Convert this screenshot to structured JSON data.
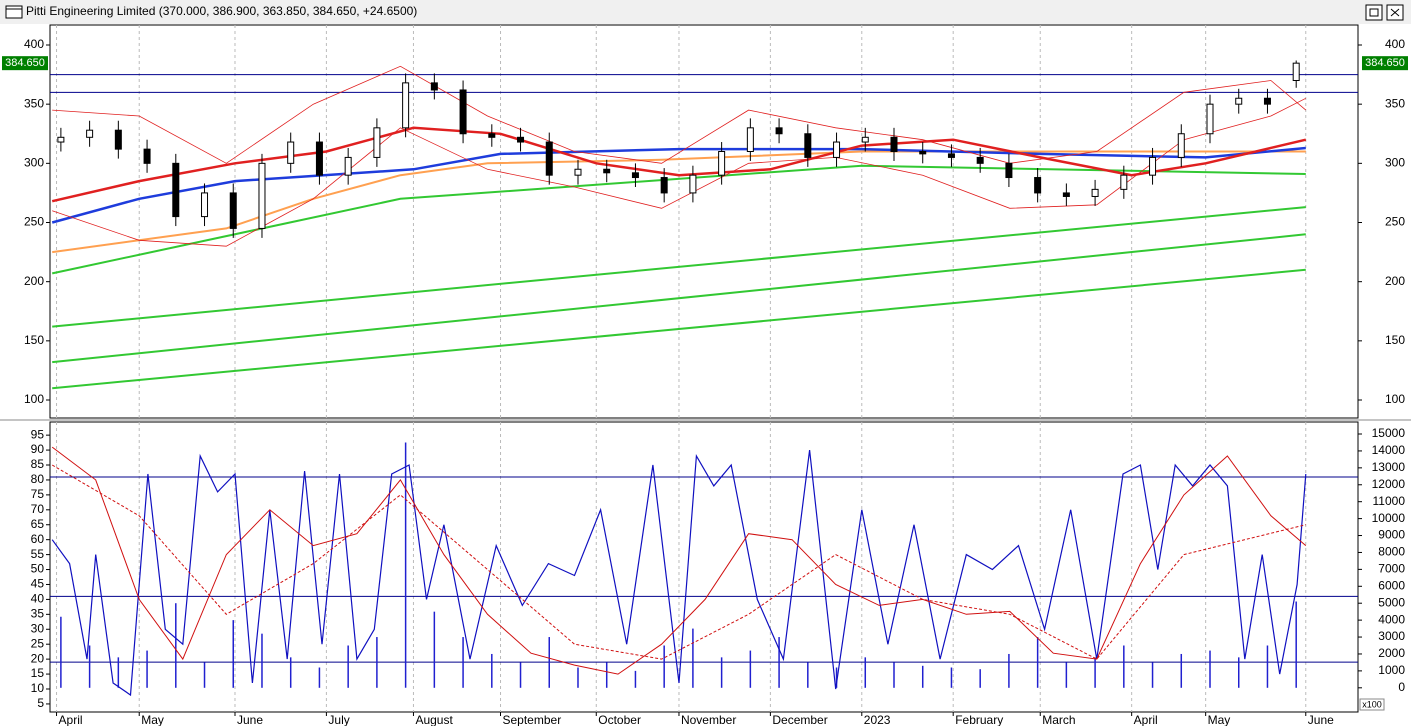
{
  "window": {
    "title": "Pitti Engineering Limited (370.000, 386.900, 363.850, 384.650, +24.6500)"
  },
  "chart_data": [
    {
      "type": "candlestick",
      "xlim": [
        -0.5,
        300
      ],
      "ylim": [
        84.8,
        416.9
      ],
      "yticks": [
        100,
        150,
        200,
        250,
        300,
        350,
        400
      ],
      "x": [
        2,
        8.6,
        15.2,
        21.8,
        28.4,
        35,
        41.6,
        48.2,
        54.8,
        61.4,
        68,
        74.6,
        81.2,
        87.8,
        94.4,
        101,
        107.6,
        114.2,
        120.8,
        127.4,
        134,
        140.6,
        147.2,
        153.8,
        160.4,
        167,
        173.6,
        180.2,
        186.8,
        193.4,
        200,
        206.6,
        213.2,
        219.8,
        226.4,
        233,
        239.6,
        246.2,
        252.8,
        259.4,
        266,
        272.6,
        279.2,
        285.8
      ],
      "open": [
        318,
        322,
        328,
        312,
        300,
        255,
        275,
        245,
        300,
        318,
        290,
        305,
        330,
        368,
        362,
        325,
        322,
        318,
        290,
        295,
        292,
        288,
        275,
        290,
        310,
        330,
        325,
        305,
        318,
        322,
        310,
        308,
        305,
        300,
        288,
        275,
        272,
        278,
        290,
        305,
        325,
        350,
        355,
        370
      ],
      "high": [
        330,
        336,
        336,
        320,
        308,
        283,
        283,
        308,
        326,
        326,
        313,
        338,
        376,
        376,
        370,
        333,
        330,
        326,
        303,
        303,
        300,
        296,
        298,
        318,
        338,
        338,
        333,
        326,
        330,
        330,
        318,
        316,
        313,
        308,
        296,
        283,
        286,
        298,
        313,
        333,
        358,
        363,
        363,
        386.9
      ],
      "low": [
        310,
        314,
        304,
        292,
        247,
        247,
        237,
        237,
        292,
        282,
        282,
        297,
        322,
        354,
        317,
        314,
        310,
        282,
        282,
        284,
        280,
        267,
        267,
        282,
        302,
        317,
        297,
        297,
        310,
        302,
        300,
        297,
        292,
        280,
        267,
        264,
        264,
        270,
        282,
        297,
        317,
        342,
        342,
        363.85
      ],
      "close": [
        322,
        328,
        312,
        300,
        255,
        275,
        245,
        300,
        318,
        290,
        305,
        330,
        368,
        362,
        325,
        322,
        318,
        290,
        295,
        292,
        288,
        275,
        290,
        310,
        330,
        325,
        305,
        318,
        322,
        310,
        308,
        305,
        300,
        288,
        275,
        272,
        278,
        290,
        305,
        325,
        350,
        355,
        350,
        384.65
      ],
      "hlines": [
        375,
        360
      ],
      "hline_color": "#00008b",
      "last_price": {
        "value": 384.65,
        "label": "384.650"
      },
      "tag_color": "#008000",
      "series": [
        {
          "color": "#32c832",
          "width": 2,
          "x": [
            0,
            288
          ],
          "values": [
            110,
            210
          ]
        },
        {
          "color": "#32c832",
          "width": 2,
          "x": [
            0,
            288
          ],
          "values": [
            132,
            240
          ]
        },
        {
          "color": "#32c832",
          "width": 2,
          "x": [
            0,
            288
          ],
          "values": [
            162,
            263
          ]
        },
        {
          "color": "#32c832",
          "width": 2,
          "x": [
            0,
            80,
            186,
            288
          ],
          "values": [
            207,
            270,
            298,
            291
          ]
        },
        {
          "color": "#ffa050",
          "width": 2,
          "x": [
            0,
            40,
            60,
            80,
            100,
            140,
            186,
            227,
            288
          ],
          "values": [
            225,
            245,
            270,
            290,
            300,
            303,
            310,
            310,
            310
          ]
        },
        {
          "color": "#1e3cdc",
          "width": 2.5,
          "x": [
            0,
            20,
            42,
            83,
            103,
            144,
            186,
            227,
            265,
            288
          ],
          "values": [
            250,
            270,
            285,
            295,
            308,
            312,
            312,
            308,
            305,
            313
          ]
        },
        {
          "color": "#e02020",
          "width": 2.5,
          "x": [
            0,
            20,
            42,
            63,
            83,
            103,
            125,
            144,
            165,
            186,
            207,
            227,
            248,
            265,
            288
          ],
          "values": [
            268,
            285,
            300,
            310,
            330,
            325,
            300,
            290,
            295,
            315,
            320,
            305,
            290,
            300,
            320
          ]
        },
        {
          "color": "#e02020",
          "width": 0.8,
          "x": [
            0,
            20,
            40,
            60,
            80,
            100,
            120,
            140,
            160,
            180,
            200,
            220,
            240,
            260,
            280,
            288
          ],
          "values": [
            345,
            340,
            300,
            350,
            382,
            340,
            310,
            300,
            345,
            330,
            320,
            300,
            310,
            360,
            370,
            345
          ]
        },
        {
          "color": "#e02020",
          "width": 0.8,
          "x": [
            0,
            20,
            40,
            60,
            80,
            100,
            120,
            140,
            160,
            180,
            200,
            220,
            240,
            260,
            280,
            288
          ],
          "values": [
            260,
            235,
            230,
            270,
            330,
            295,
            280,
            262,
            300,
            305,
            290,
            262,
            265,
            320,
            340,
            355
          ]
        }
      ]
    },
    {
      "type": "oscillator",
      "xlim": [
        -0.5,
        300
      ],
      "ylim": [
        2.3,
        99.4
      ],
      "yticks": [
        5,
        10,
        15,
        20,
        25,
        30,
        35,
        40,
        45,
        50,
        55,
        60,
        65,
        70,
        75,
        80,
        85,
        90,
        95
      ],
      "y2lim": [
        -1430,
        15710
      ],
      "y2ticks": [
        0,
        1000,
        2000,
        3000,
        4000,
        5000,
        6000,
        7000,
        8000,
        9000,
        10000,
        11000,
        12000,
        13000,
        14000,
        15000
      ],
      "y2_unit": "x100",
      "xticks": [
        {
          "value": 1,
          "label": "April"
        },
        {
          "value": 20,
          "label": "May"
        },
        {
          "value": 42,
          "label": "June"
        },
        {
          "value": 63,
          "label": "July"
        },
        {
          "value": 83,
          "label": "August"
        },
        {
          "value": 103,
          "label": "September"
        },
        {
          "value": 125,
          "label": "October"
        },
        {
          "value": 144,
          "label": "November"
        },
        {
          "value": 165,
          "label": "December"
        },
        {
          "value": 186,
          "label": "2023"
        },
        {
          "value": 207,
          "label": "February"
        },
        {
          "value": 227,
          "label": "March"
        },
        {
          "value": 248,
          "label": "April"
        },
        {
          "value": 265,
          "label": "May"
        },
        {
          "value": 288,
          "label": "June"
        }
      ],
      "hlines": [
        81,
        41,
        19
      ],
      "hline_color": "#00008b",
      "volume": {
        "axis": "y2",
        "color": "#2020d0",
        "x": [
          2,
          8.6,
          15.2,
          21.8,
          28.4,
          35,
          41.6,
          48.2,
          54.8,
          61.4,
          68,
          74.6,
          81.2,
          87.8,
          94.4,
          101,
          107.6,
          114.2,
          120.8,
          127.4,
          134,
          140.6,
          147.2,
          153.8,
          160.4,
          167,
          173.6,
          180.2,
          186.8,
          193.4,
          200,
          206.6,
          213.2,
          219.8,
          226.4,
          233,
          239.6,
          246.2,
          252.8,
          259.4,
          266,
          272.6,
          279.2,
          285.8
        ],
        "values": [
          4200,
          2500,
          1800,
          2200,
          5000,
          1500,
          4000,
          3200,
          1800,
          1200,
          2500,
          3000,
          14500,
          4500,
          3000,
          2000,
          1500,
          3000,
          1200,
          1500,
          1000,
          2500,
          3500,
          1800,
          2200,
          3000,
          1500,
          1200,
          1800,
          1500,
          1300,
          1200,
          1100,
          2000,
          3000,
          1500,
          1800,
          2500,
          1500,
          2000,
          2200,
          1800,
          2500,
          5100
        ]
      },
      "series": [
        {
          "color": "#1010c0",
          "width": 1.2,
          "x": [
            0,
            4,
            8,
            10,
            14,
            18,
            22,
            26,
            30,
            34,
            38,
            42,
            46,
            50,
            54,
            58,
            62,
            66,
            70,
            74,
            78,
            82,
            86,
            90,
            96,
            102,
            108,
            114,
            120,
            126,
            132,
            138,
            144,
            148,
            152,
            156,
            162,
            168,
            174,
            180,
            186,
            192,
            198,
            204,
            210,
            216,
            222,
            228,
            234,
            240,
            246,
            250,
            254,
            258,
            262,
            266,
            270,
            274,
            278,
            282,
            286,
            288
          ],
          "values": [
            60,
            52,
            20,
            55,
            12,
            8,
            82,
            30,
            25,
            88,
            76,
            82,
            12,
            70,
            20,
            83,
            25,
            82,
            20,
            30,
            82,
            85,
            40,
            65,
            20,
            58,
            38,
            52,
            48,
            70,
            25,
            85,
            12,
            88,
            78,
            85,
            40,
            20,
            90,
            10,
            70,
            25,
            65,
            20,
            55,
            50,
            58,
            30,
            70,
            20,
            82,
            85,
            50,
            85,
            78,
            85,
            78,
            20,
            55,
            15,
            45,
            82
          ]
        },
        {
          "color": "#d01010",
          "width": 1,
          "x": [
            0,
            10,
            20,
            30,
            40,
            50,
            60,
            70,
            80,
            90,
            100,
            110,
            120,
            130,
            140,
            150,
            160,
            170,
            180,
            190,
            200,
            210,
            220,
            230,
            240,
            250,
            260,
            270,
            280,
            288
          ],
          "values": [
            91,
            80,
            40,
            20,
            55,
            70,
            58,
            62,
            80,
            55,
            35,
            22,
            18,
            15,
            25,
            40,
            62,
            60,
            45,
            38,
            40,
            35,
            36,
            22,
            20,
            52,
            75,
            88,
            68,
            58
          ]
        },
        {
          "color": "#d01010",
          "width": 1,
          "dashed": true,
          "x": [
            0,
            20,
            40,
            60,
            80,
            100,
            120,
            140,
            160,
            180,
            200,
            220,
            240,
            260,
            288
          ],
          "values": [
            85,
            68,
            35,
            52,
            75,
            50,
            25,
            20,
            35,
            55,
            40,
            35,
            20,
            55,
            65
          ]
        }
      ]
    }
  ]
}
